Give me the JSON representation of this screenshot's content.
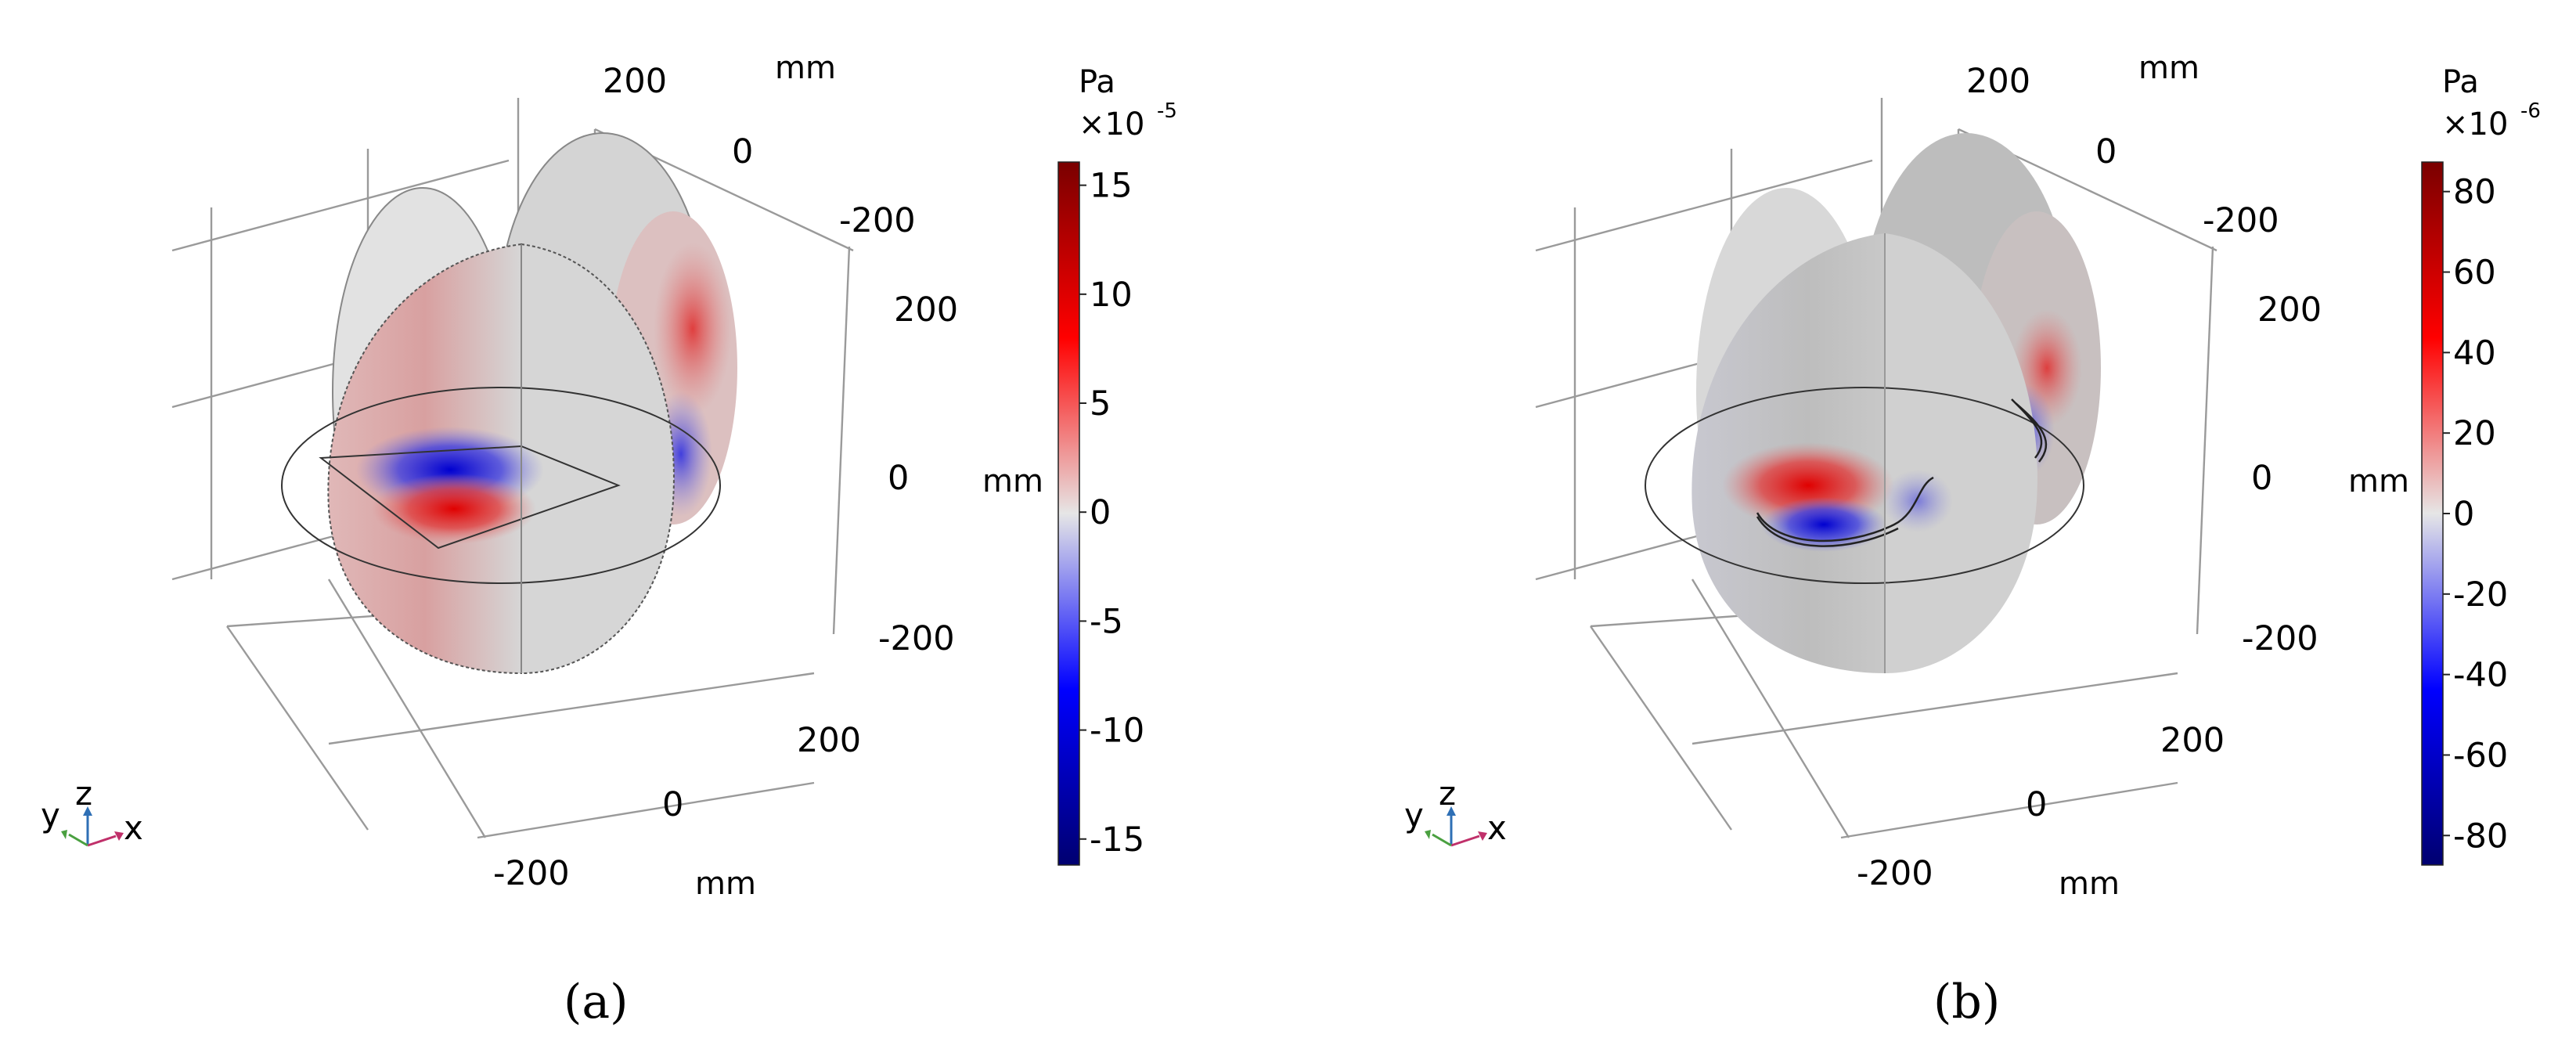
{
  "panels": [
    {
      "id": "a",
      "subcaption": "(a)",
      "axis_unit": "mm",
      "tick_labels_top": [
        "200",
        "0",
        "-200"
      ],
      "tick_labels_right": [
        "200",
        "0",
        "-200"
      ],
      "tick_labels_bottom": [
        "200",
        "0",
        "-200"
      ],
      "colorbar": {
        "unit": "Pa",
        "exponent": "×10",
        "exponent_power": "-5",
        "ticks": [
          "15",
          "10",
          "5",
          "0",
          "-5",
          "-10",
          "-15"
        ],
        "side_label": "mm"
      },
      "triad": {
        "y": "y",
        "z": "z",
        "x": "x"
      }
    },
    {
      "id": "b",
      "subcaption": "(b)",
      "axis_unit": "mm",
      "tick_labels_top": [
        "200",
        "0",
        "-200"
      ],
      "tick_labels_right": [
        "200",
        "0",
        "-200"
      ],
      "tick_labels_bottom": [
        "200",
        "0",
        "-200"
      ],
      "colorbar": {
        "unit": "Pa",
        "exponent": "×10",
        "exponent_power": "-6",
        "ticks": [
          "80",
          "60",
          "40",
          "20",
          "0",
          "-20",
          "-40",
          "-60",
          "-80"
        ],
        "side_label": "mm"
      },
      "triad": {
        "y": "y",
        "z": "z",
        "x": "x"
      }
    }
  ],
  "colors": {
    "positive": "#d40000",
    "negative": "#0010d0",
    "neutral": "#dcdcdc",
    "dark_red": "#7a0000",
    "dark_blue": "#000070"
  }
}
